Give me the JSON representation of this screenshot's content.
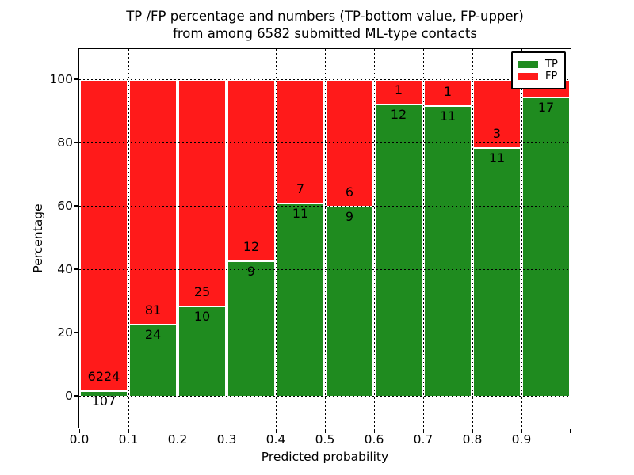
{
  "chart_data": {
    "type": "bar",
    "stacked": true,
    "title_line1": "TP /FP percentage and numbers (TP-bottom value, FP-upper)",
    "title_line2": "from among 6582 submitted ML-type contacts",
    "xlabel": "Predicted probability",
    "ylabel": "Percentage",
    "x_tick_labels": [
      "0.0",
      "0.1",
      "0.2",
      "0.3",
      "0.4",
      "0.5",
      "0.6",
      "0.7",
      "0.8",
      "0.9"
    ],
    "y_tick_labels": [
      "0",
      "20",
      "40",
      "60",
      "80",
      "100"
    ],
    "y_tick_values": [
      0,
      20,
      40,
      60,
      80,
      100
    ],
    "xlim": [
      0.0,
      1.0
    ],
    "ylim": [
      -10,
      109.5
    ],
    "bin_width": 0.1,
    "total_contacts": 6582,
    "grid": true,
    "bars": [
      {
        "bin_start": 0.0,
        "bin_end": 0.1,
        "tp": 107,
        "fp": 6224,
        "tp_pct": 1.7
      },
      {
        "bin_start": 0.1,
        "bin_end": 0.2,
        "tp": 24,
        "fp": 81,
        "tp_pct": 22.9
      },
      {
        "bin_start": 0.2,
        "bin_end": 0.3,
        "tp": 10,
        "fp": 25,
        "tp_pct": 28.6
      },
      {
        "bin_start": 0.3,
        "bin_end": 0.4,
        "tp": 9,
        "fp": 12,
        "tp_pct": 42.9
      },
      {
        "bin_start": 0.4,
        "bin_end": 0.5,
        "tp": 11,
        "fp": 7,
        "tp_pct": 61.1
      },
      {
        "bin_start": 0.5,
        "bin_end": 0.6,
        "tp": 9,
        "fp": 6,
        "tp_pct": 60.0
      },
      {
        "bin_start": 0.6,
        "bin_end": 0.7,
        "tp": 12,
        "fp": 1,
        "tp_pct": 92.3
      },
      {
        "bin_start": 0.7,
        "bin_end": 0.8,
        "tp": 11,
        "fp": 1,
        "tp_pct": 91.7
      },
      {
        "bin_start": 0.8,
        "bin_end": 0.9,
        "tp": 11,
        "fp": 3,
        "tp_pct": 78.6
      },
      {
        "bin_start": 0.9,
        "bin_end": 1.0,
        "tp": 17,
        "fp": 1,
        "tp_pct": 94.4
      }
    ],
    "colors": {
      "tp": "#1f8b1f",
      "fp": "#ff1a1a",
      "grid": "#000000",
      "text": "#000000",
      "background": "#ffffff"
    },
    "legend": {
      "position": "upper-right",
      "entries": [
        {
          "label": "TP",
          "color": "#1f8b1f"
        },
        {
          "label": "FP",
          "color": "#ff1a1a"
        }
      ]
    }
  }
}
